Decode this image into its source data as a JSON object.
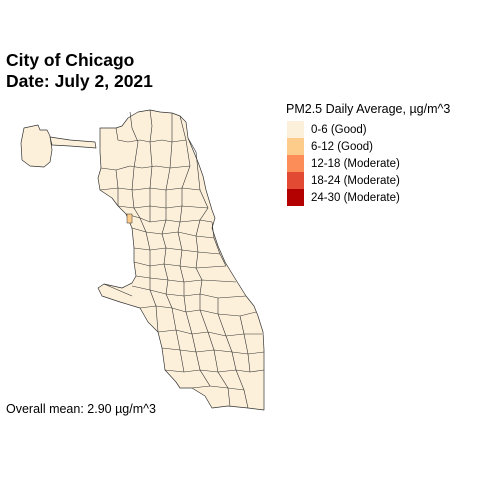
{
  "title": {
    "line1": "City of Chicago",
    "line2": "Date: July 2, 2021"
  },
  "legend": {
    "title": "PM2.5 Daily Average, µg/m^3",
    "items": [
      {
        "label": "0-6 (Good)",
        "color": "#fdf0da"
      },
      {
        "label": "6-12 (Good)",
        "color": "#fdcc8a"
      },
      {
        "label": "12-18 (Moderate)",
        "color": "#fc8d59"
      },
      {
        "label": "18-24 (Moderate)",
        "color": "#e34a33"
      },
      {
        "label": "24-30 (Moderate)",
        "color": "#b30000"
      }
    ]
  },
  "caption": "Overall mean: 2.90 µg/m^3",
  "map": {
    "region": "Chicago community areas",
    "fill_color": "#fdf0da",
    "border_color": "#333333",
    "highlight_area_level": "6-12 (Good)"
  }
}
